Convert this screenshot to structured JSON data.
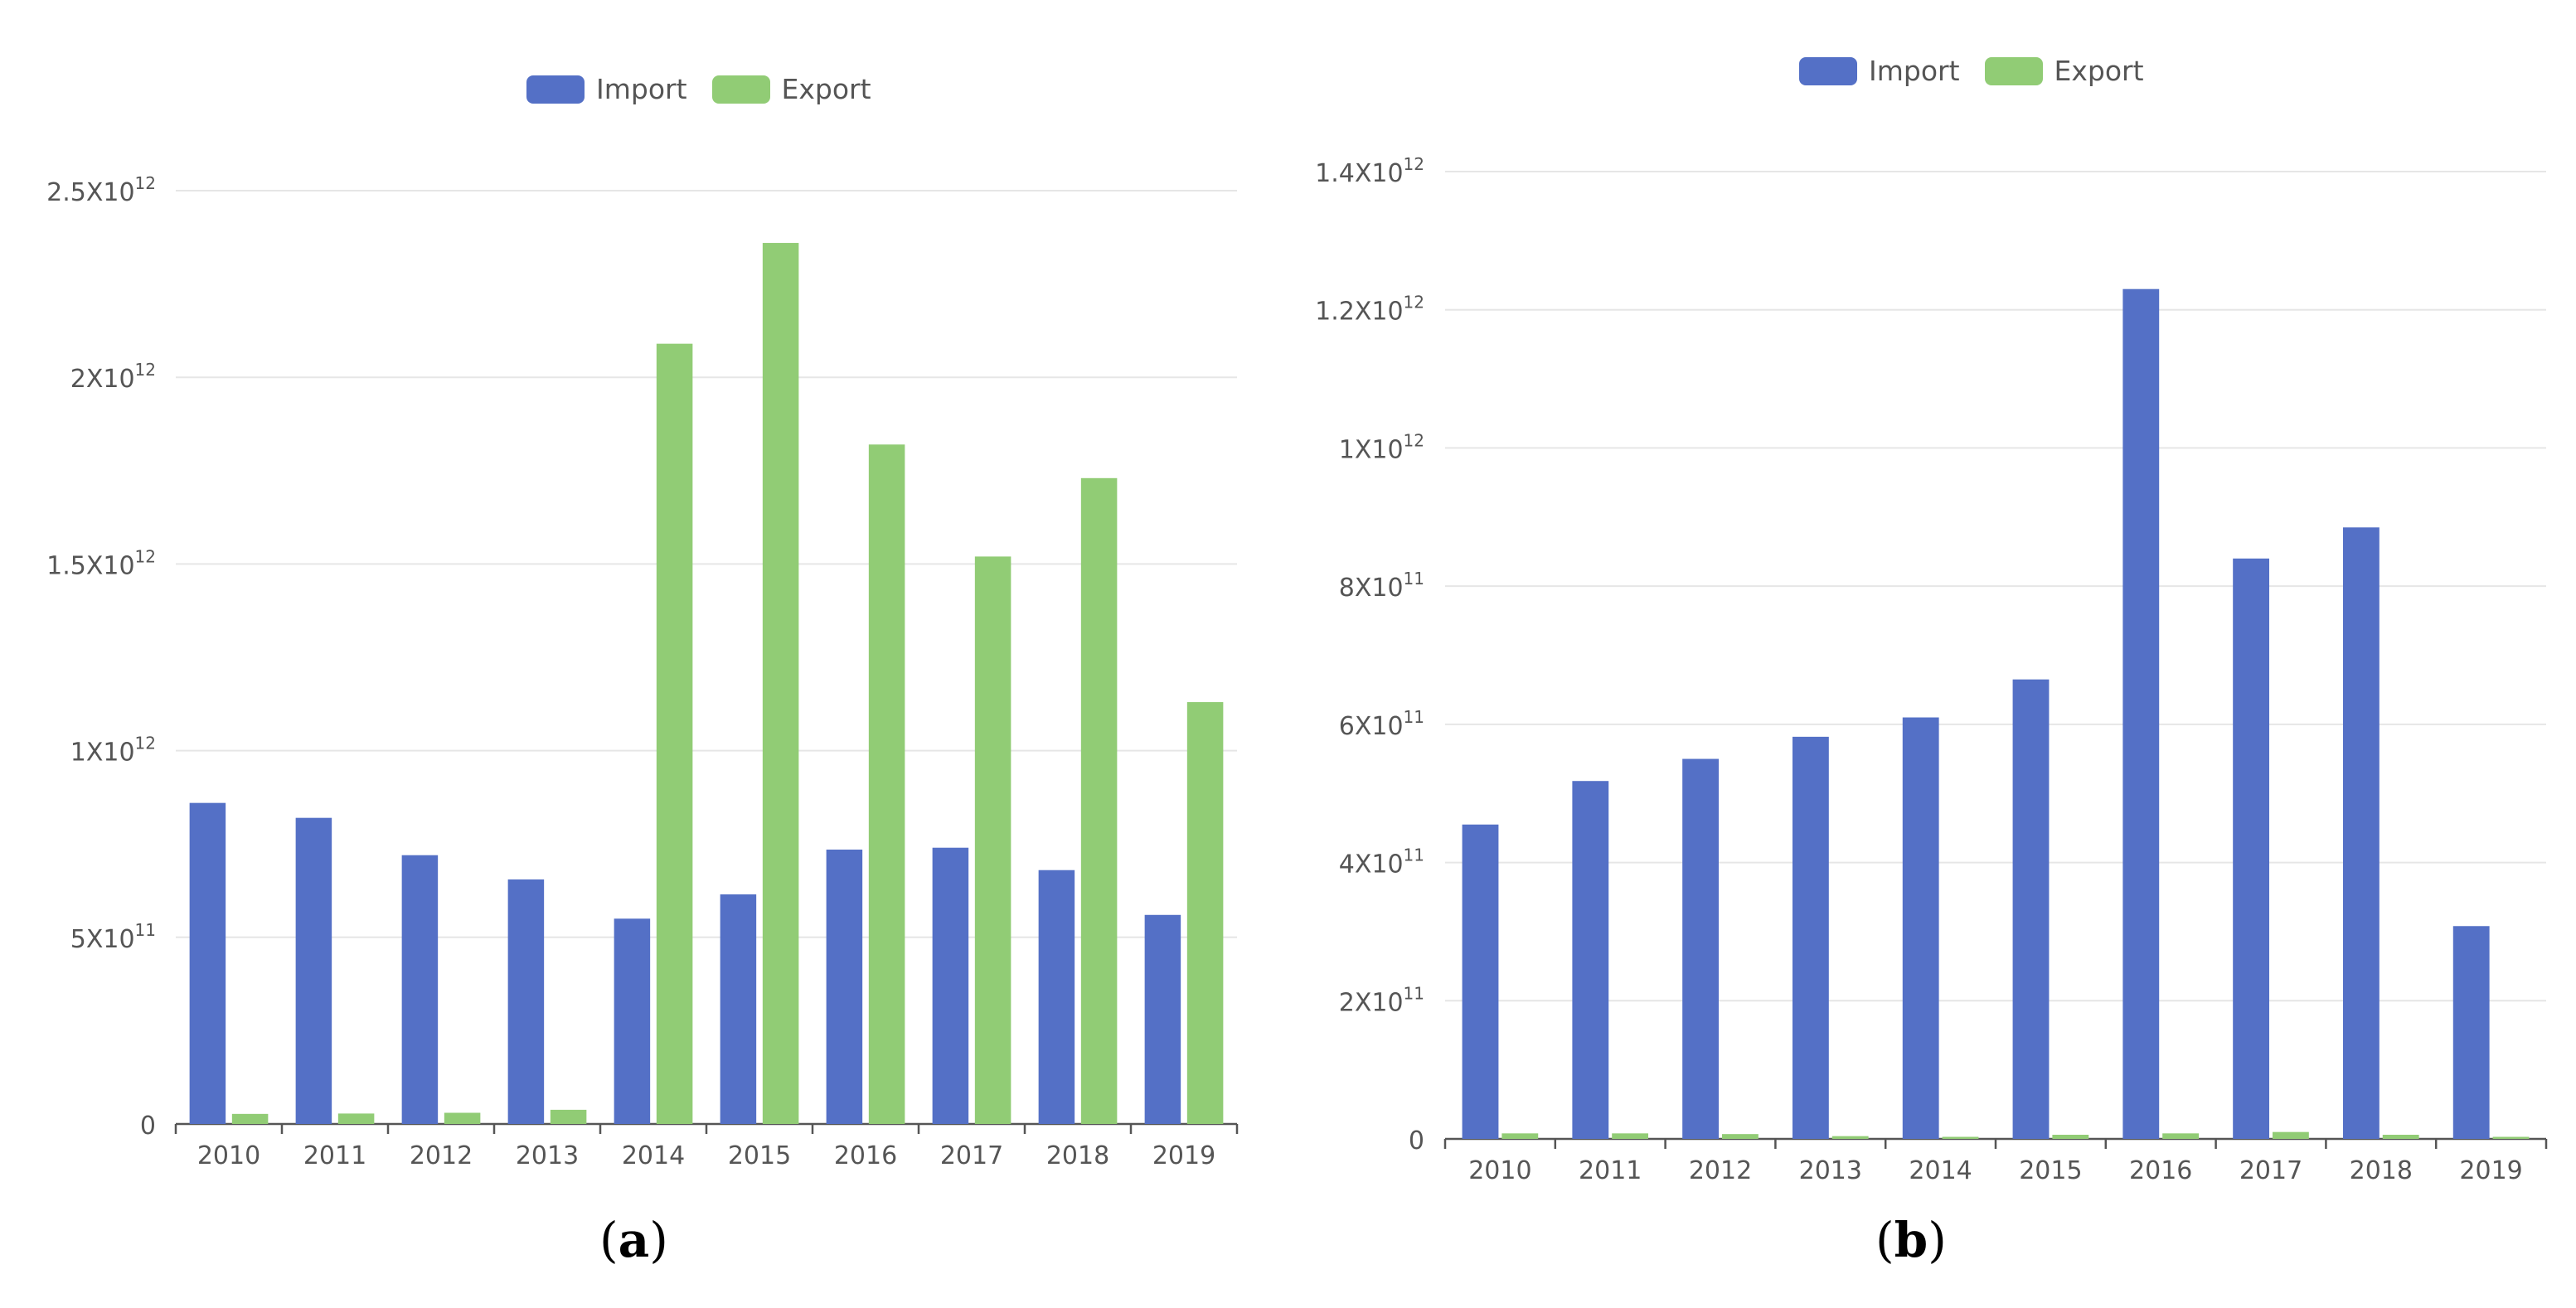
{
  "chart_data": [
    {
      "type": "bar",
      "panel_label": "a",
      "title": "",
      "xlabel": "",
      "ylabel": "",
      "categories": [
        "2010",
        "2011",
        "2012",
        "2013",
        "2014",
        "2015",
        "2016",
        "2017",
        "2018",
        "2019"
      ],
      "series": [
        {
          "name": "Import",
          "color": "#5470c6",
          "values": [
            860000000000.0,
            820000000000.0,
            720000000000.0,
            655000000000.0,
            550000000000.0,
            615000000000.0,
            735000000000.0,
            740000000000.0,
            680000000000.0,
            560000000000.0
          ]
        },
        {
          "name": "Export",
          "color": "#91cc75",
          "values": [
            27000000000.0,
            28000000000.0,
            30000000000.0,
            38000000000.0,
            2090000000000.0,
            2360000000000.0,
            1820000000000.0,
            1520000000000.0,
            1730000000000.0,
            1130000000000.0
          ]
        }
      ],
      "ylim": [
        0,
        2500000000000.0
      ],
      "yticks": [
        {
          "value": 0,
          "base": "0",
          "exp": ""
        },
        {
          "value": 500000000000.0,
          "base": "5X10",
          "exp": "11"
        },
        {
          "value": 1000000000000.0,
          "base": "1X10",
          "exp": "12"
        },
        {
          "value": 1500000000000.0,
          "base": "1.5X10",
          "exp": "12"
        },
        {
          "value": 2000000000000.0,
          "base": "2X10",
          "exp": "12"
        },
        {
          "value": 2500000000000.0,
          "base": "2.5X10",
          "exp": "12"
        }
      ],
      "grid": true,
      "legend": "top-center"
    },
    {
      "type": "bar",
      "panel_label": "b",
      "title": "",
      "xlabel": "",
      "ylabel": "",
      "categories": [
        "2010",
        "2011",
        "2012",
        "2013",
        "2014",
        "2015",
        "2016",
        "2017",
        "2018",
        "2019"
      ],
      "series": [
        {
          "name": "Import",
          "color": "#5470c6",
          "values": [
            455000000000.0,
            518000000000.0,
            550000000000.0,
            582000000000.0,
            610000000000.0,
            665000000000.0,
            1230000000000.0,
            840000000000.0,
            885000000000.0,
            308000000000.0
          ]
        },
        {
          "name": "Export",
          "color": "#91cc75",
          "values": [
            8000000000.0,
            8000000000.0,
            7000000000.0,
            4000000000.0,
            3000000000.0,
            6000000000.0,
            8000000000.0,
            10000000000.0,
            6000000000.0,
            3000000000.0
          ]
        }
      ],
      "ylim": [
        0,
        1400000000000.0
      ],
      "yticks": [
        {
          "value": 0,
          "base": "0",
          "exp": ""
        },
        {
          "value": 200000000000.0,
          "base": "2X10",
          "exp": "11"
        },
        {
          "value": 400000000000.0,
          "base": "4X10",
          "exp": "11"
        },
        {
          "value": 600000000000.0,
          "base": "6X10",
          "exp": "11"
        },
        {
          "value": 800000000000.0,
          "base": "8X10",
          "exp": "11"
        },
        {
          "value": 1000000000000.0,
          "base": "1X10",
          "exp": "12"
        },
        {
          "value": 1200000000000.0,
          "base": "1.2X10",
          "exp": "12"
        },
        {
          "value": 1400000000000.0,
          "base": "1.4X10",
          "exp": "12"
        }
      ],
      "grid": true,
      "legend": "top-center"
    }
  ]
}
